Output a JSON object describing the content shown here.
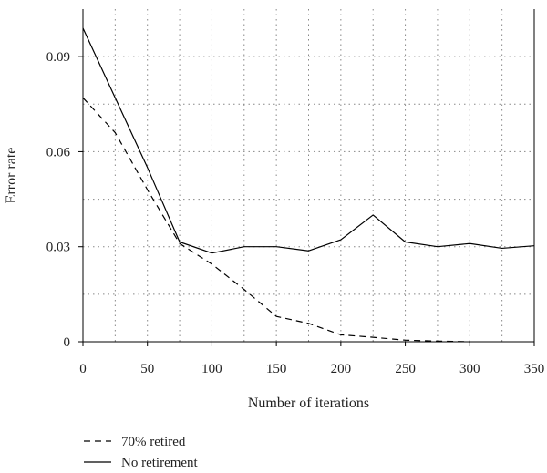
{
  "chart_data": {
    "type": "line",
    "title": "",
    "xlabel": "Number of iterations",
    "ylabel": "Error rate",
    "xlim": [
      0,
      350
    ],
    "ylim": [
      0,
      0.105
    ],
    "grid": true,
    "legend_position": "bottom-left",
    "x_ticks": [
      0,
      50,
      100,
      150,
      200,
      250,
      300,
      350
    ],
    "x_tick_labels": [
      "0",
      "50",
      "100",
      "150",
      "200",
      "250",
      "300",
      "350"
    ],
    "y_ticks": [
      0,
      0.03,
      0.06,
      0.09
    ],
    "y_tick_labels": [
      "0",
      "0.03",
      "0.06",
      "0.09"
    ],
    "series": [
      {
        "name": "70% retired",
        "line_style": "dashed",
        "color": "#000000",
        "x": [
          0,
          25,
          50,
          75,
          100,
          125,
          150,
          175,
          200,
          225,
          250,
          275,
          300
        ],
        "y": [
          0.077,
          0.066,
          0.048,
          0.031,
          0.0245,
          0.0165,
          0.008,
          0.0058,
          0.0022,
          0.0014,
          0.0005,
          0.0002,
          0.0
        ]
      },
      {
        "name": "No retirement",
        "line_style": "solid",
        "color": "#000000",
        "x": [
          0,
          25,
          50,
          75,
          100,
          125,
          150,
          175,
          200,
          225,
          250,
          275,
          300,
          325,
          350
        ],
        "y": [
          0.099,
          0.077,
          0.055,
          0.0315,
          0.028,
          0.03,
          0.03,
          0.0287,
          0.0322,
          0.04,
          0.0315,
          0.03,
          0.031,
          0.0295,
          0.0303
        ]
      }
    ]
  }
}
